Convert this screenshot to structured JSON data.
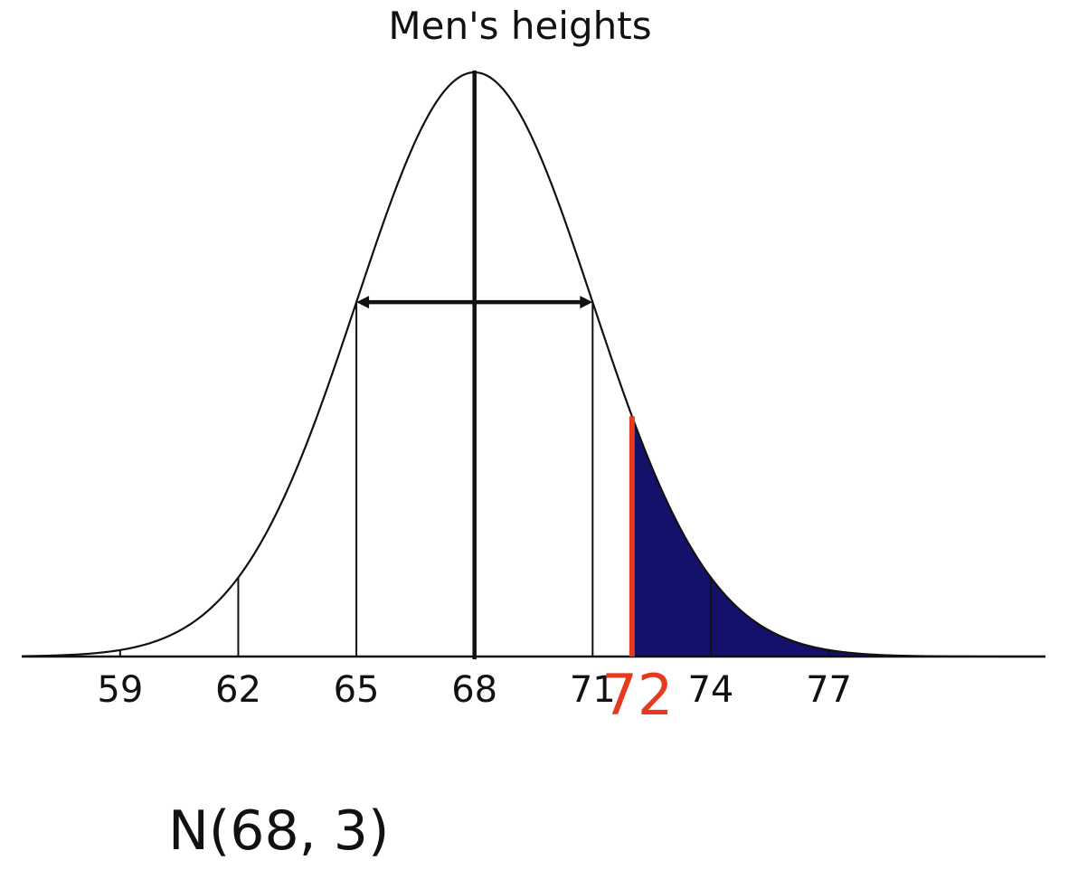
{
  "chart_data": {
    "type": "area",
    "title": "Men's heights",
    "caption": "N(68, 3)",
    "distribution": {
      "name": "normal",
      "mean": 68,
      "sd": 3
    },
    "xlim": [
      56.5,
      82.5
    ],
    "x_ticks": [
      59,
      62,
      65,
      68,
      71,
      74,
      77
    ],
    "sd_interval": [
      65,
      71
    ],
    "highlight": {
      "value": 72,
      "label": "72",
      "shaded_region": "right tail (x ≥ 72)"
    },
    "colors": {
      "curve": "#111111",
      "shade": "#13116a",
      "highlight": "#e63a1e"
    }
  }
}
